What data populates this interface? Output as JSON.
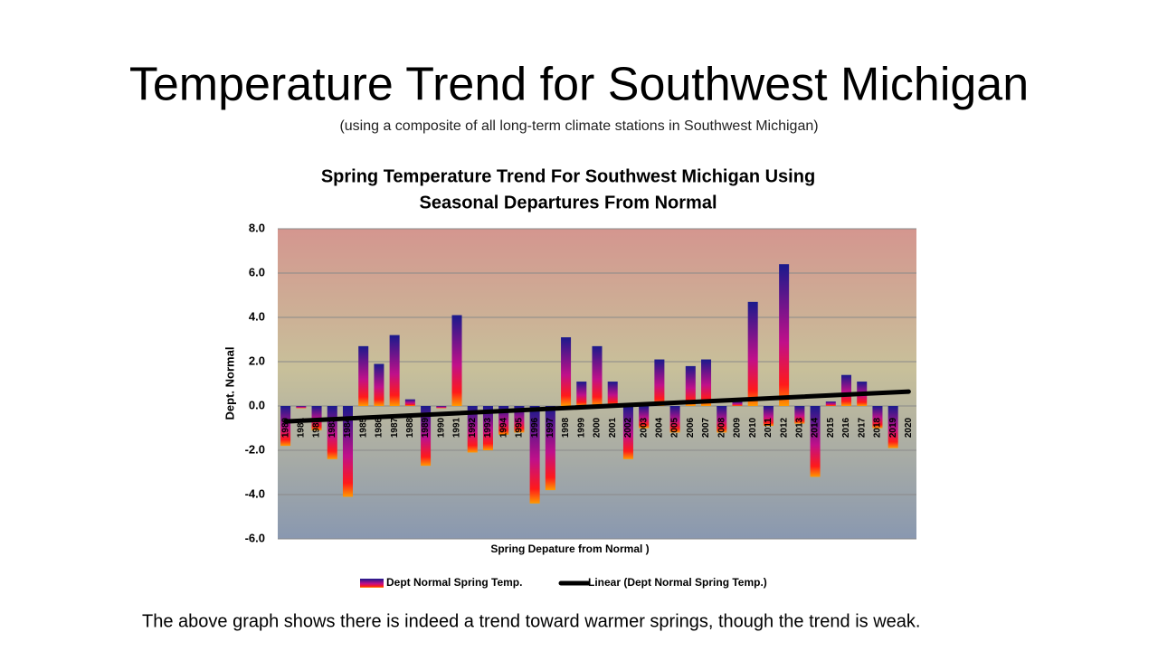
{
  "slide_title": "Temperature Trend for Southwest Michigan",
  "slide_subtitle": "(using a composite of all long-term climate stations in Southwest Michigan)",
  "caption": "The above graph shows there is indeed a trend toward warmer springs, though the trend is weak.",
  "chart_data": {
    "type": "bar",
    "title": [
      "Spring Temperature Trend For Southwest Michigan Using",
      "Seasonal Departures From Normal"
    ],
    "x_label": "Spring Depature from Normal )",
    "y_label": "Dept. Normal",
    "categories": [
      "1980",
      "1981",
      "1982",
      "1983",
      "1984",
      "1985",
      "1986",
      "1987",
      "1988",
      "1989",
      "1990",
      "1991",
      "1992",
      "1993",
      "1994",
      "1995",
      "1996",
      "1997",
      "1998",
      "1999",
      "2000",
      "2001",
      "2002",
      "2003",
      "2004",
      "2005",
      "2006",
      "2007",
      "2008",
      "2009",
      "2010",
      "2011",
      "2012",
      "2013",
      "2014",
      "2015",
      "2016",
      "2017",
      "2018",
      "2019",
      "2020"
    ],
    "series": [
      {
        "name": "Dept Normal Spring Temp.",
        "colors": [
          "#1a1a8c",
          "#c0108a",
          "#ff1a1a",
          "#ff9a00"
        ],
        "values": [
          -1.8,
          -0.1,
          -1.1,
          -2.4,
          -4.1,
          2.7,
          1.9,
          3.2,
          0.3,
          -2.7,
          -0.1,
          4.1,
          -2.1,
          -2.0,
          -1.3,
          -1.2,
          -4.4,
          -3.8,
          3.1,
          1.1,
          2.7,
          1.1,
          -2.4,
          -1.0,
          2.1,
          -1.2,
          1.8,
          2.1,
          -1.2,
          0.2,
          4.7,
          -0.9,
          6.4,
          -0.8,
          -3.2,
          0.2,
          1.4,
          1.1,
          -1.0,
          -1.9,
          null
        ]
      }
    ],
    "trendline": {
      "name": "Linear (Dept Normal Spring Temp.)",
      "color": "#000000",
      "values": [
        -0.7,
        0.65
      ]
    },
    "ylim": [
      -6,
      8
    ],
    "yticks": [
      {
        "value": -6,
        "label": "-6.0"
      },
      {
        "value": -4,
        "label": "-4.0"
      },
      {
        "value": -2,
        "label": "-2.0"
      },
      {
        "value": 0,
        "label": "0.0"
      },
      {
        "value": 2,
        "label": "2.0"
      },
      {
        "value": 4,
        "label": "4.0"
      },
      {
        "value": 6,
        "label": "6.0"
      },
      {
        "value": 8,
        "label": "8.0"
      }
    ],
    "grid": true,
    "legend": "bottom"
  }
}
